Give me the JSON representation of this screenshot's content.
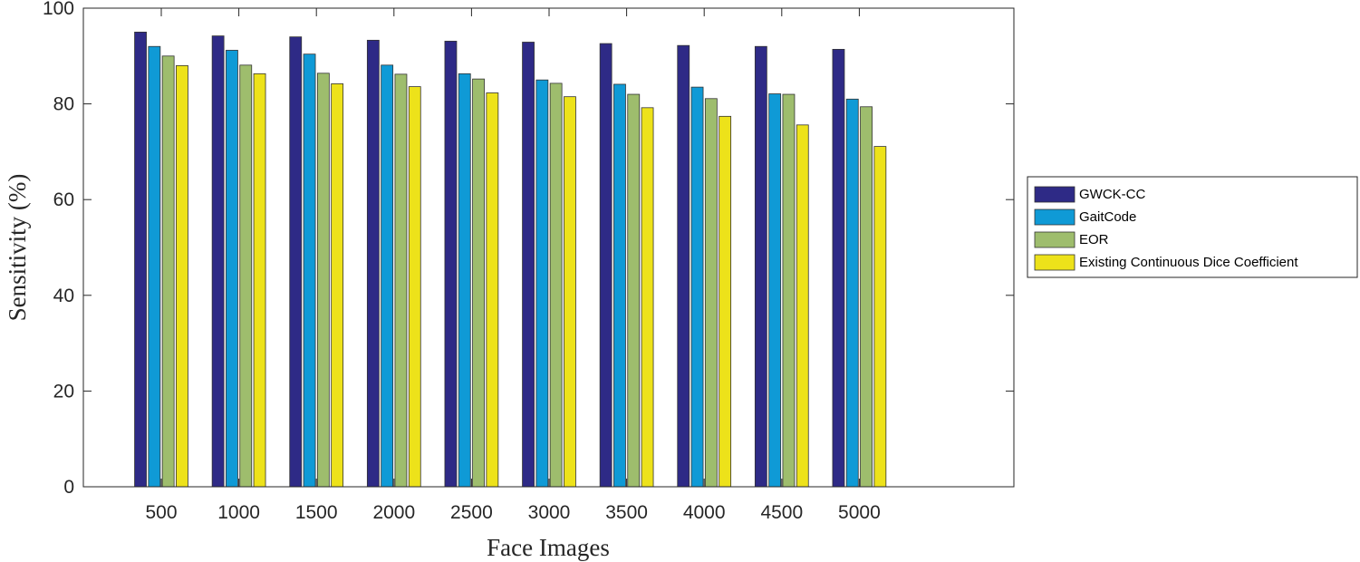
{
  "chart_data": {
    "type": "bar",
    "title": "",
    "xlabel": "Face Images",
    "ylabel": "Sensitivity (%)",
    "ylim": [
      0,
      100
    ],
    "yticks": [
      0,
      20,
      40,
      60,
      80,
      100
    ],
    "grid": false,
    "legend_position": "right",
    "categories": [
      "500",
      "1000",
      "1500",
      "2000",
      "2500",
      "3000",
      "3500",
      "4000",
      "4500",
      "5000"
    ],
    "series": [
      {
        "name": "GWCK-CC",
        "color": "#2e2a86",
        "values": [
          95.0,
          94.2,
          94.0,
          93.3,
          93.1,
          92.9,
          92.6,
          92.2,
          92.0,
          91.4
        ]
      },
      {
        "name": "GaitCode",
        "color": "#0f9ad6",
        "values": [
          92.0,
          91.2,
          90.4,
          88.1,
          86.3,
          85.0,
          84.1,
          83.5,
          82.1,
          81.0
        ]
      },
      {
        "name": "EOR",
        "color": "#9ebd6d",
        "values": [
          90.0,
          88.1,
          86.4,
          86.2,
          85.2,
          84.3,
          82.0,
          81.1,
          82.0,
          79.4
        ]
      },
      {
        "name": "Existing Continuous Dice Coefficient",
        "color": "#ede21a",
        "values": [
          88.0,
          86.3,
          84.2,
          83.6,
          82.3,
          81.5,
          79.2,
          77.4,
          75.6,
          71.1
        ]
      }
    ]
  }
}
